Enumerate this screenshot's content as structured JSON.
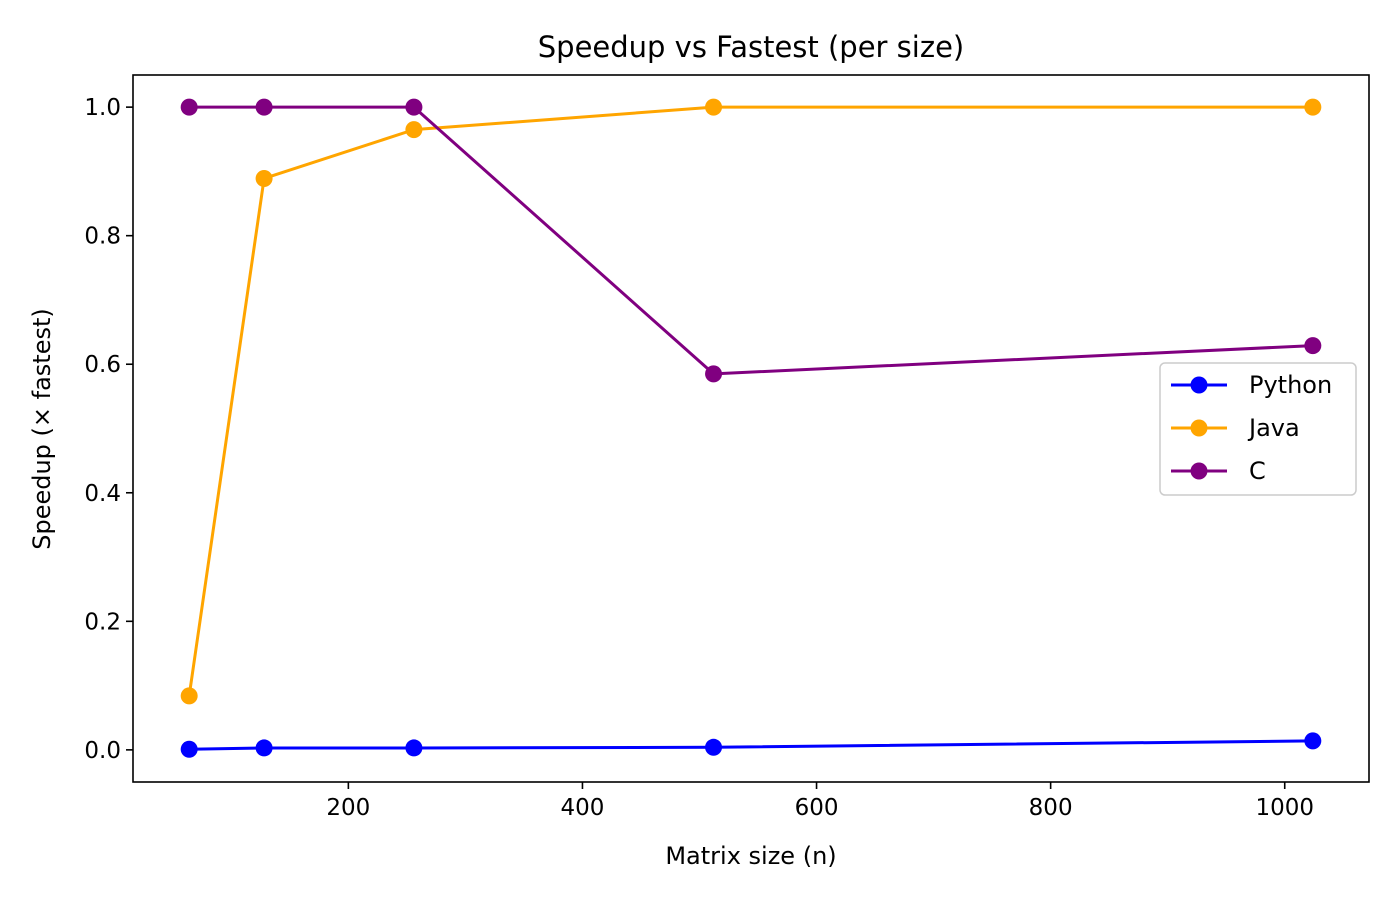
{
  "chart_data": {
    "type": "line",
    "title": "Speedup vs Fastest (per size)",
    "xlabel": "Matrix size (n)",
    "ylabel": "Speedup (× fastest)",
    "xlim": [
      16,
      1072
    ],
    "ylim": [
      -0.05,
      1.05
    ],
    "xticks": [
      200,
      400,
      600,
      800,
      1000
    ],
    "yticks": [
      0.0,
      0.2,
      0.4,
      0.6,
      0.8,
      1.0
    ],
    "xtick_labels": [
      "200",
      "400",
      "600",
      "800",
      "1000"
    ],
    "ytick_labels": [
      "0.0",
      "0.2",
      "0.4",
      "0.6",
      "0.8",
      "1.0"
    ],
    "grid": false,
    "legend_position": "center-right",
    "x": [
      64,
      128,
      256,
      512,
      1024
    ],
    "series": [
      {
        "name": "Python",
        "color": "#0000ff",
        "values": [
          0.001,
          0.003,
          0.003,
          0.004,
          0.014
        ]
      },
      {
        "name": "Java",
        "color": "#ffa500",
        "values": [
          0.084,
          0.889,
          0.965,
          1.0,
          1.0
        ]
      },
      {
        "name": "C",
        "color": "#800080",
        "values": [
          1.0,
          1.0,
          1.0,
          0.585,
          0.629
        ]
      }
    ]
  }
}
